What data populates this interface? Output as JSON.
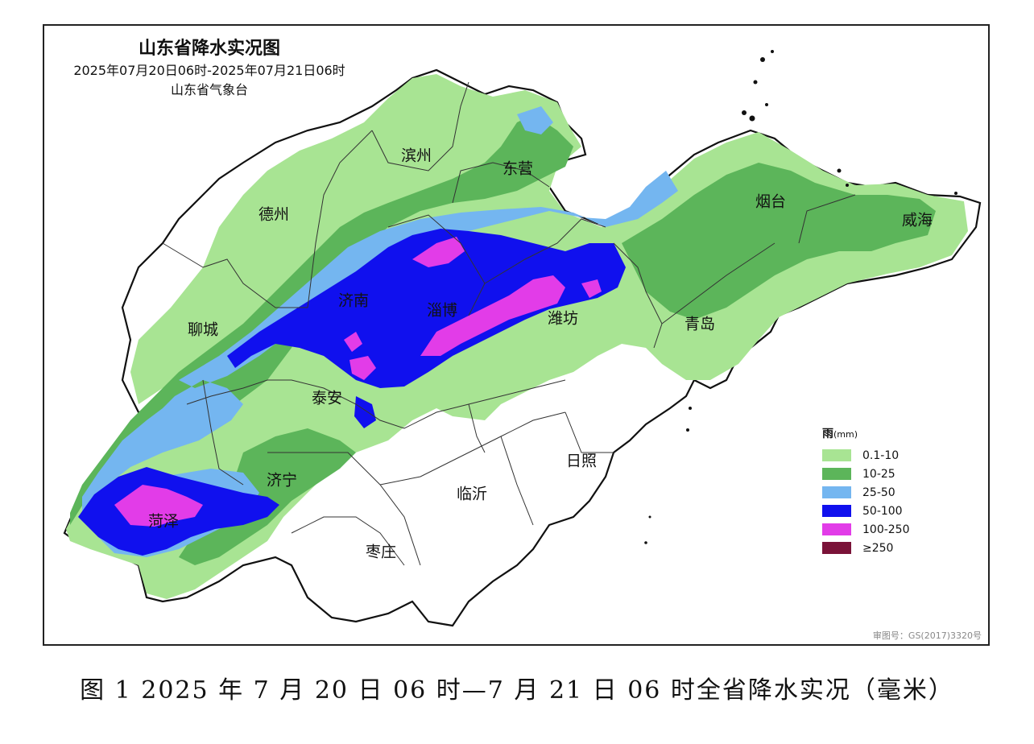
{
  "map": {
    "title": "山东省降水实况图",
    "period": "2025年07月20日06时-2025年07月21日06时",
    "issuer": "山东省气象台",
    "approval_number": "审图号：GS(2017)3320号"
  },
  "cities": [
    {
      "id": "binzhou",
      "name": "滨州"
    },
    {
      "id": "dongying",
      "name": "东营"
    },
    {
      "id": "dezhou",
      "name": "德州"
    },
    {
      "id": "yantai",
      "name": "烟台"
    },
    {
      "id": "weihai",
      "name": "威海"
    },
    {
      "id": "jinan",
      "name": "济南"
    },
    {
      "id": "zibo",
      "name": "淄博"
    },
    {
      "id": "weifang",
      "name": "潍坊"
    },
    {
      "id": "liaocheng",
      "name": "聊城"
    },
    {
      "id": "qingdao",
      "name": "青岛"
    },
    {
      "id": "taian",
      "name": "泰安"
    },
    {
      "id": "jining",
      "name": "济宁"
    },
    {
      "id": "rizhao",
      "name": "日照"
    },
    {
      "id": "linyi",
      "name": "临沂"
    },
    {
      "id": "heze",
      "name": "菏泽"
    },
    {
      "id": "zaozhuang",
      "name": "枣庄"
    }
  ],
  "legend": {
    "title": "雨",
    "unit": "(mm)",
    "items": [
      {
        "label": "0.1-10",
        "color": "#a8e493"
      },
      {
        "label": "10-25",
        "color": "#5cb55a"
      },
      {
        "label": "25-50",
        "color": "#74b6f0"
      },
      {
        "label": "50-100",
        "color": "#1010ee"
      },
      {
        "label": "100-250",
        "color": "#e23ce8"
      },
      {
        "label": "≥250",
        "color": "#7a1238"
      }
    ]
  },
  "caption": "图 1  2025 年 7 月 20 日 06 时—7 月 21 日 06 时全省降水实况（毫米）"
}
